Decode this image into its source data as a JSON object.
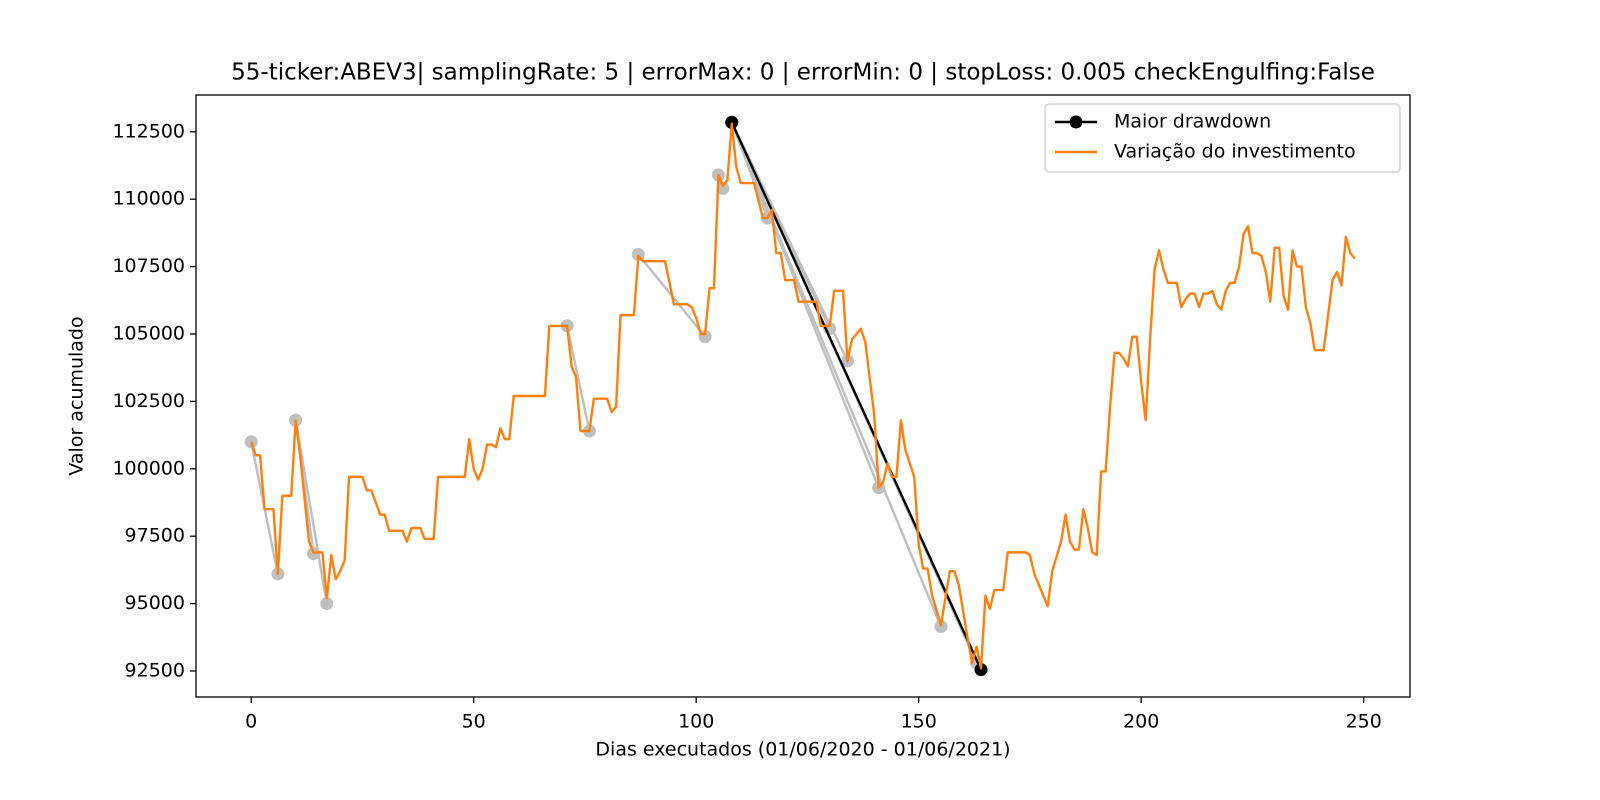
{
  "chart_data": {
    "type": "line",
    "title": "55-ticker:ABEV3| samplingRate: 5 | errorMax: 0 | errorMin: 0 | stopLoss: 0.005 checkEngulfing:False",
    "xlabel": "Dias executados (01/06/2020 - 01/06/2021)",
    "ylabel": "Valor acumulado",
    "xlim": [
      -12.4,
      260.4
    ],
    "ylim": [
      91535,
      113865
    ],
    "xticks": [
      0,
      50,
      100,
      150,
      200,
      250
    ],
    "yticks": [
      92500,
      95000,
      97500,
      100000,
      102500,
      105000,
      107500,
      110000,
      112500
    ],
    "legend": "upper right",
    "series": [
      {
        "color": "#bfbfbf",
        "marker": "o",
        "x": [
          0,
          6
        ],
        "values": [
          101000,
          96100
        ]
      },
      {
        "color": "#bfbfbf",
        "marker": "o",
        "x": [
          10,
          14
        ],
        "values": [
          101800,
          96850
        ]
      },
      {
        "color": "#bfbfbf",
        "marker": "o",
        "x": [
          10,
          17
        ],
        "values": [
          101800,
          95000
        ]
      },
      {
        "color": "#bfbfbf",
        "marker": "o",
        "x": [
          71,
          76
        ],
        "values": [
          105300,
          101400
        ]
      },
      {
        "color": "#bfbfbf",
        "marker": "o",
        "x": [
          87,
          102
        ],
        "values": [
          107950,
          104900
        ]
      },
      {
        "color": "#bfbfbf",
        "marker": "o",
        "x": [
          105,
          106
        ],
        "values": [
          110900,
          110400
        ]
      },
      {
        "color": "#bfbfbf",
        "marker": "o",
        "x": [
          108,
          116
        ],
        "values": [
          112850,
          109300
        ]
      },
      {
        "color": "#bfbfbf",
        "marker": "o",
        "x": [
          108,
          130
        ],
        "values": [
          112850,
          105200
        ]
      },
      {
        "color": "#bfbfbf",
        "marker": "o",
        "x": [
          108,
          134
        ],
        "values": [
          112850,
          104000
        ]
      },
      {
        "color": "#bfbfbf",
        "marker": "o",
        "x": [
          108,
          141
        ],
        "values": [
          112850,
          99300
        ]
      },
      {
        "color": "#bfbfbf",
        "marker": "o",
        "x": [
          108,
          155
        ],
        "values": [
          112850,
          94150
        ]
      },
      {
        "color": "#bfbfbf",
        "marker": "o",
        "x": [
          108,
          163
        ],
        "values": [
          112850,
          92800
        ]
      },
      {
        "name": "Maior drawdown",
        "color": "#000000",
        "marker": "o",
        "x": [
          108,
          164
        ],
        "values": [
          112850,
          92550
        ]
      },
      {
        "name": "Variação do investimento",
        "color": "#ff7f0e",
        "x": [
          0,
          1,
          2,
          3,
          5,
          6,
          7,
          9,
          10,
          11,
          13,
          14,
          16,
          17,
          18,
          19,
          20,
          21,
          22,
          25,
          26,
          27,
          29,
          30,
          31,
          34,
          35,
          36,
          38,
          39,
          41,
          42,
          48,
          49,
          50,
          51,
          52,
          53,
          54,
          55,
          56,
          57,
          58,
          59,
          66,
          67,
          71,
          72,
          73,
          74,
          76,
          77,
          80,
          81,
          82,
          83,
          86,
          87,
          88,
          93,
          95,
          98,
          99,
          100,
          101,
          102,
          103,
          104,
          105,
          106,
          107,
          108,
          109,
          110,
          113,
          115,
          116,
          117,
          118,
          119,
          120,
          122,
          123,
          127,
          128,
          130,
          131,
          133,
          134,
          135,
          136,
          137,
          138,
          140,
          141,
          142,
          143,
          144,
          145,
          146,
          147,
          149,
          150,
          151,
          152,
          153,
          155,
          157,
          158,
          159,
          161,
          162,
          163,
          164,
          165,
          166,
          167,
          169,
          170,
          174,
          175,
          176,
          178,
          179,
          180,
          182,
          183,
          184,
          185,
          186,
          187,
          188,
          189,
          190,
          191,
          192,
          193,
          194,
          195,
          196,
          197,
          198,
          199,
          200,
          201,
          202,
          203,
          204,
          205,
          206,
          208,
          209,
          210,
          211,
          212,
          213,
          214,
          215,
          216,
          217,
          218,
          219,
          220,
          221,
          222,
          223,
          224,
          225,
          226,
          227,
          228,
          229,
          230,
          231,
          232,
          233,
          234,
          235,
          236,
          237,
          238,
          239,
          241,
          242,
          243,
          244,
          245,
          246,
          247,
          248
        ],
        "values": [
          101000,
          100500,
          100500,
          98500,
          98500,
          96100,
          99000,
          99000,
          101800,
          100500,
          97300,
          96900,
          96900,
          95200,
          96800,
          95900,
          96200,
          96600,
          99700,
          99700,
          99200,
          99200,
          98300,
          98300,
          97700,
          97700,
          97300,
          97800,
          97800,
          97400,
          97400,
          99700,
          99700,
          101100,
          100000,
          99600,
          100000,
          100900,
          100900,
          100800,
          101500,
          101100,
          101100,
          102700,
          102700,
          105300,
          105300,
          103800,
          103400,
          101400,
          101400,
          102600,
          102600,
          102100,
          102300,
          105700,
          105700,
          107900,
          107700,
          107700,
          106100,
          106100,
          106000,
          105600,
          105000,
          105000,
          106700,
          106700,
          110900,
          110500,
          110700,
          112800,
          111200,
          110600,
          110600,
          109300,
          109300,
          109600,
          108000,
          108000,
          107000,
          107000,
          106200,
          106200,
          105300,
          105300,
          106600,
          106600,
          104000,
          104800,
          105000,
          105200,
          104700,
          102000,
          99300,
          99500,
          100200,
          99700,
          99700,
          101800,
          100700,
          99700,
          97200,
          96300,
          96300,
          95300,
          94200,
          96200,
          96200,
          95700,
          93700,
          92800,
          93400,
          92600,
          95300,
          94800,
          95500,
          95500,
          96900,
          96900,
          96800,
          96100,
          95300,
          94900,
          96200,
          97300,
          98300,
          97300,
          97000,
          97000,
          98500,
          97800,
          96900,
          96800,
          99900,
          99900,
          102300,
          104300,
          104300,
          104100,
          103800,
          104900,
          104900,
          103200,
          101800,
          104800,
          107400,
          108100,
          107400,
          106900,
          106900,
          106000,
          106300,
          106500,
          106500,
          106000,
          106500,
          106500,
          106600,
          106100,
          105900,
          106600,
          106900,
          106900,
          107500,
          108700,
          109000,
          108000,
          108000,
          107900,
          107300,
          106200,
          108200,
          108200,
          106400,
          105900,
          108100,
          107500,
          107500,
          106000,
          105400,
          104400,
          104400,
          105700,
          107000,
          107300,
          106800,
          108600,
          108000,
          107800
        ]
      }
    ]
  }
}
